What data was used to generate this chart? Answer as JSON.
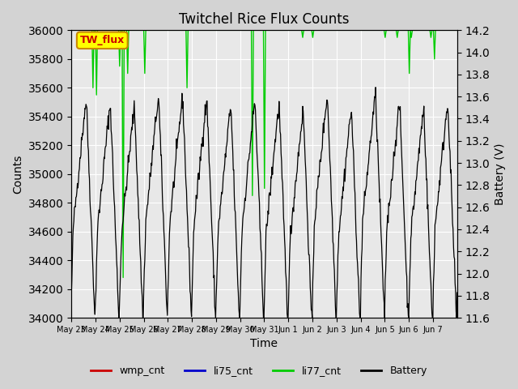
{
  "title": "Twitchel Rice Flux Counts",
  "xlabel": "Time",
  "ylabel_left": "Counts",
  "ylabel_right": "Battery (V)",
  "ylim_left": [
    34000,
    36000
  ],
  "ylim_right": [
    11.6,
    14.2
  ],
  "x_tick_labels": [
    "May 23",
    "May 24",
    "May 25",
    "May 26",
    "May 27",
    "May 28",
    "May 29",
    "May 30",
    "May 31",
    "Jun 1",
    "Jun 2",
    "Jun 3",
    "Jun 4",
    "Jun 5",
    "Jun 6",
    "Jun 7"
  ],
  "yticks_left": [
    34000,
    34200,
    34400,
    34600,
    34800,
    35000,
    35200,
    35400,
    35600,
    35800,
    36000
  ],
  "yticks_right": [
    11.6,
    11.8,
    12.0,
    12.2,
    12.4,
    12.6,
    12.8,
    13.0,
    13.2,
    13.4,
    13.6,
    13.8,
    14.0,
    14.2
  ],
  "background_color": "#d3d3d3",
  "plot_bg_color": "#e8e8e8",
  "legend_entries": [
    "wmp_cnt",
    "li75_cnt",
    "li77_cnt",
    "Battery"
  ],
  "legend_colors": [
    "#cc0000",
    "#0000cc",
    "#00cc00",
    "#000000"
  ],
  "annotation_text": "TW_flux",
  "annotation_fg": "#cc0000",
  "annotation_bg": "#ffff00",
  "annotation_border": "#cc8800",
  "n_days": 16,
  "points_per_day": 48
}
